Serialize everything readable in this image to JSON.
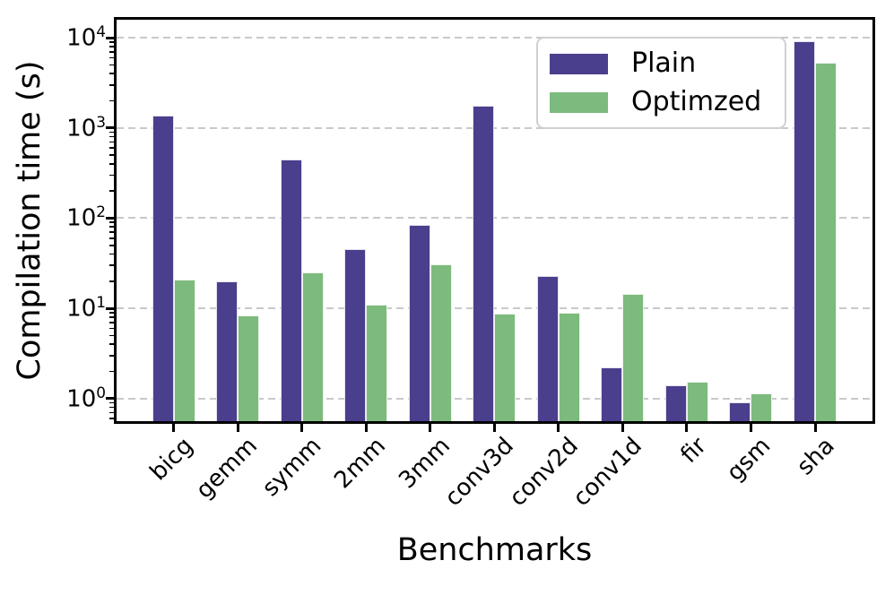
{
  "chart_data": {
    "type": "bar",
    "title": "",
    "xlabel": "Benchmarks",
    "ylabel": "Compilation time (s)",
    "yscale": "log",
    "ylim": [
      0.56,
      15850
    ],
    "ytick_exponents": [
      0,
      1,
      2,
      3,
      4
    ],
    "grid": {
      "axis": "y",
      "style": "dashed",
      "color": "#c9c9c9"
    },
    "legend_position": "upper right",
    "categories": [
      "bicg",
      "gemm",
      "symm",
      "2mm",
      "3mm",
      "conv3d",
      "conv2d",
      "conv1d",
      "fir",
      "gsm",
      "sha"
    ],
    "series": [
      {
        "name": "Plain",
        "color": "#4a3f8c",
        "values": [
          1370,
          20,
          450,
          45,
          85,
          1750,
          23,
          2.2,
          1.4,
          0.9,
          9200
        ]
      },
      {
        "name": "Optimzed",
        "color": "#7dba7d",
        "values": [
          21,
          8.3,
          25,
          11,
          31,
          8.8,
          9.0,
          14.6,
          1.55,
          1.15,
          5300
        ]
      }
    ]
  }
}
